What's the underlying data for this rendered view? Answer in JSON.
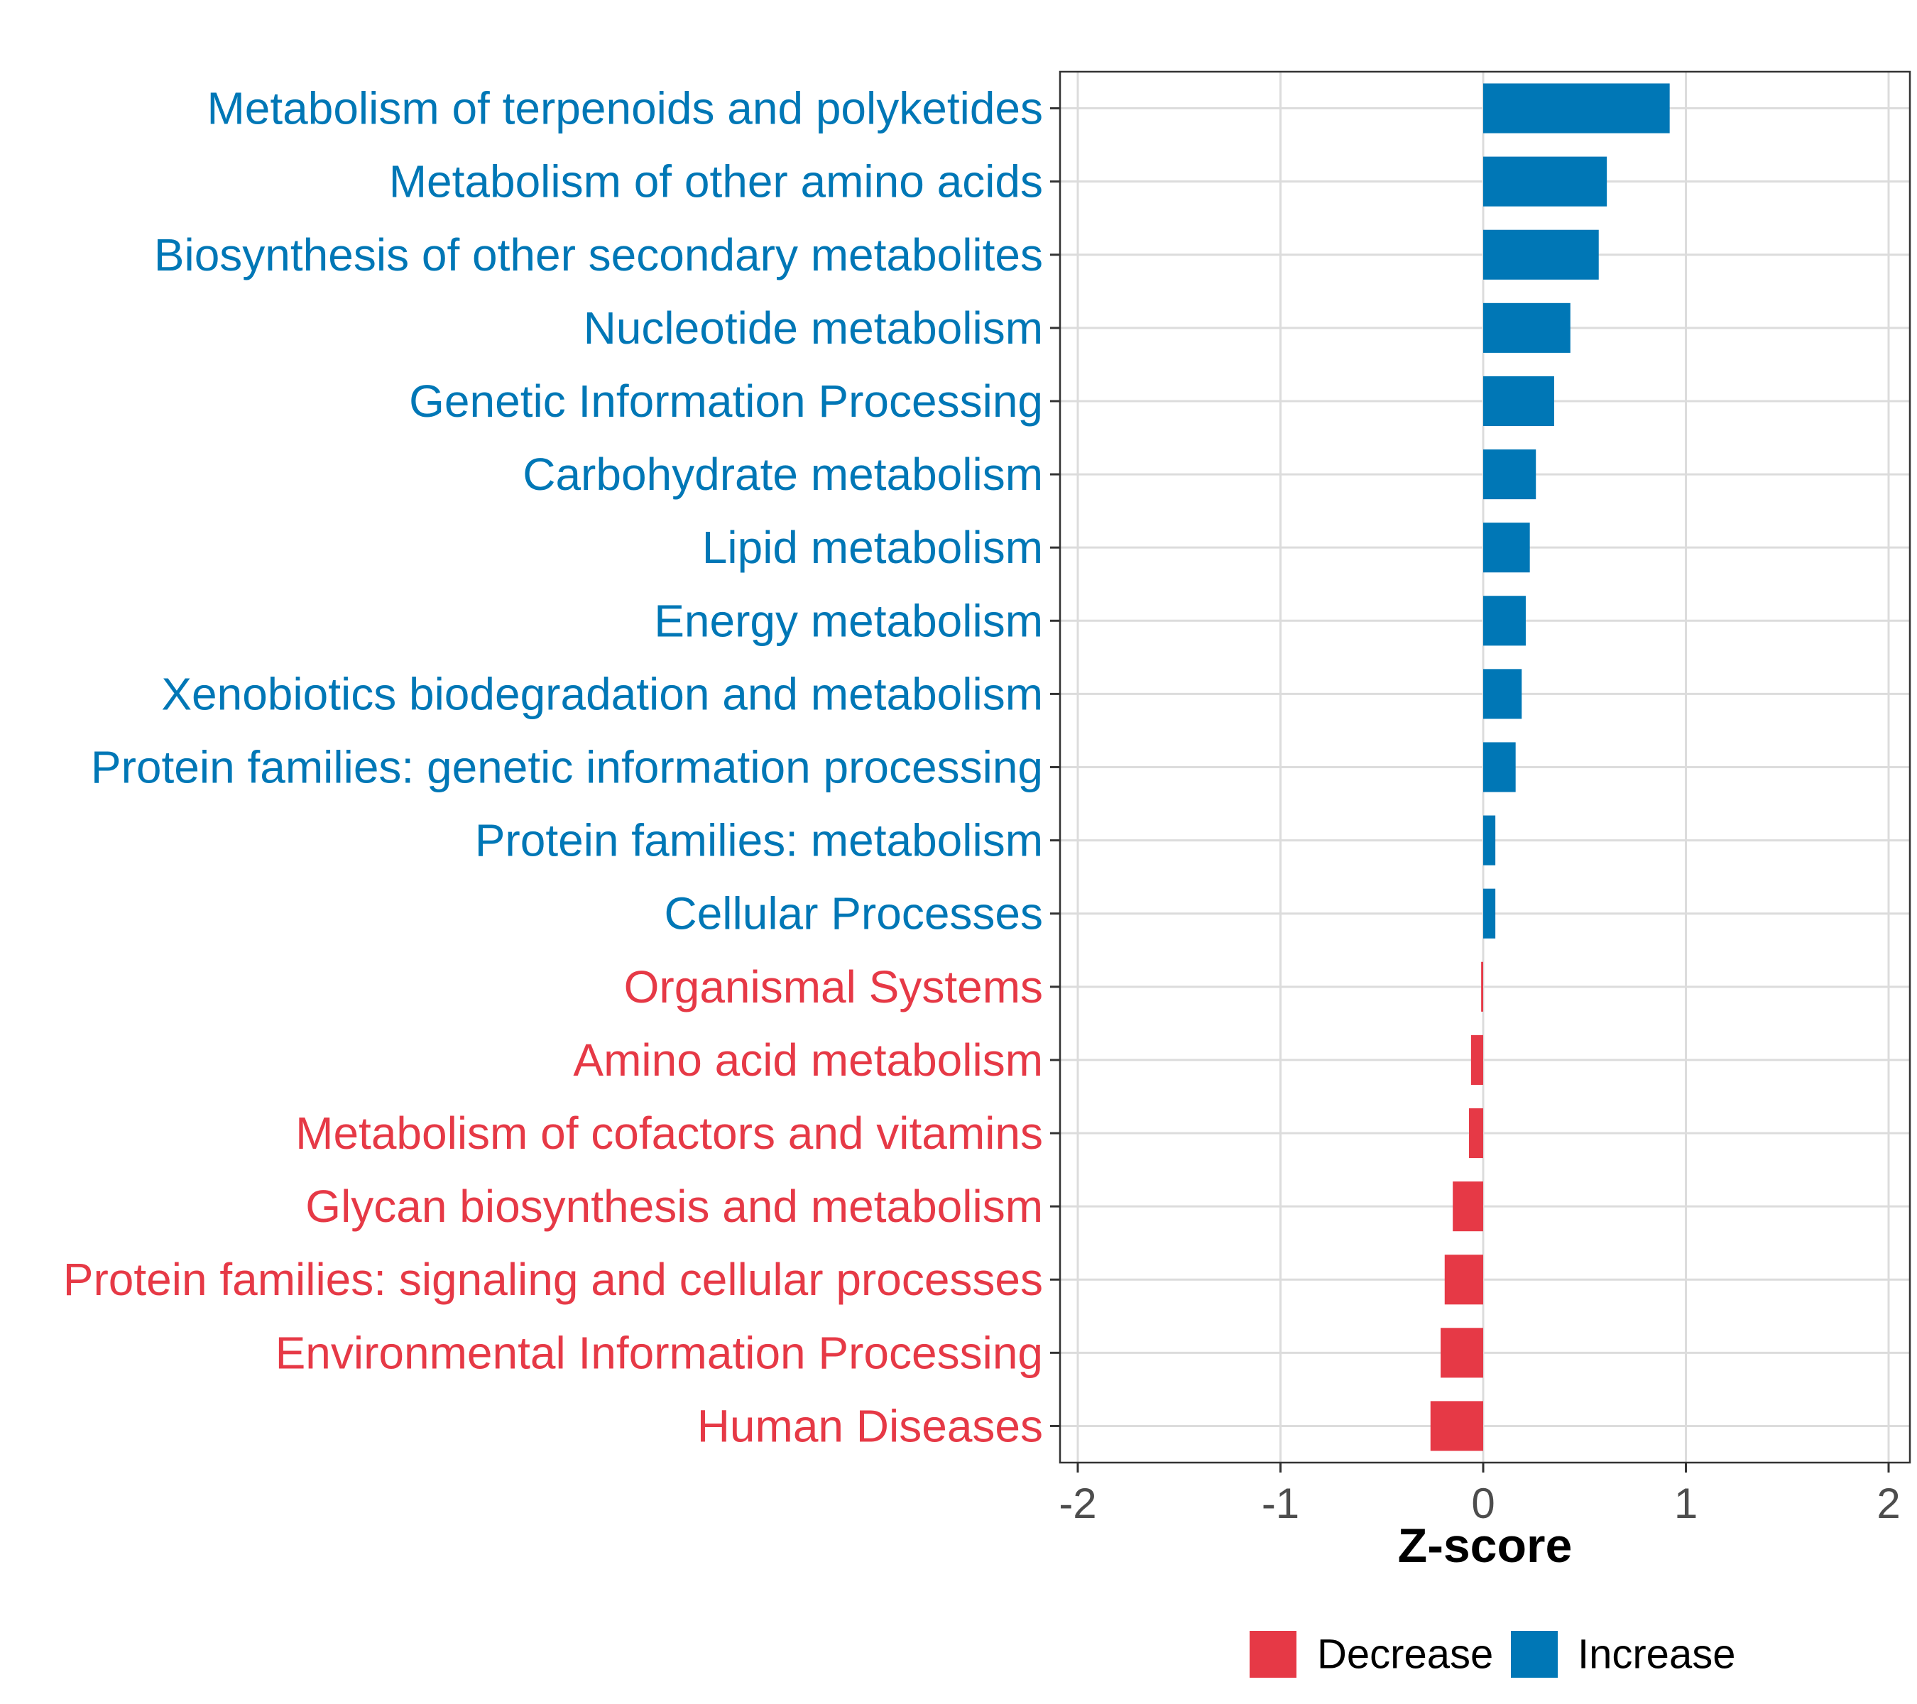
{
  "chart_data": {
    "type": "bar",
    "orientation": "horizontal",
    "title": "",
    "xlabel": "Z-score",
    "ylabel": "",
    "xlim": [
      -2,
      2
    ],
    "xticks": [
      "-2",
      "-1",
      "0",
      "1",
      "2"
    ],
    "grid": true,
    "legend_position": "bottom",
    "legend": [
      {
        "name": "Decrease",
        "color": "#E63946"
      },
      {
        "name": "Increase",
        "color": "#0077B6"
      }
    ],
    "colors": {
      "Decrease": "#E63946",
      "Increase": "#0077B6"
    },
    "categories": [
      "Metabolism of terpenoids and polyketides",
      "Metabolism of other amino acids",
      "Biosynthesis of other secondary metabolites",
      "Nucleotide metabolism",
      "Genetic Information Processing",
      "Carbohydrate metabolism",
      "Lipid metabolism",
      "Energy metabolism",
      "Xenobiotics biodegradation and metabolism",
      "Protein families: genetic information processing",
      "Protein families: metabolism",
      "Cellular Processes",
      "Organismal Systems",
      "Amino acid metabolism",
      "Metabolism of cofactors and vitamins",
      "Glycan biosynthesis and metabolism",
      "Protein families: signaling and cellular processes",
      "Environmental Information Processing",
      "Human Diseases"
    ],
    "values": [
      0.92,
      0.61,
      0.57,
      0.43,
      0.35,
      0.26,
      0.23,
      0.21,
      0.19,
      0.16,
      0.06,
      0.06,
      -0.01,
      -0.06,
      -0.07,
      -0.15,
      -0.19,
      -0.21,
      -0.26
    ],
    "groups": [
      "Increase",
      "Increase",
      "Increase",
      "Increase",
      "Increase",
      "Increase",
      "Increase",
      "Increase",
      "Increase",
      "Increase",
      "Increase",
      "Increase",
      "Decrease",
      "Decrease",
      "Decrease",
      "Decrease",
      "Decrease",
      "Decrease",
      "Decrease"
    ]
  }
}
